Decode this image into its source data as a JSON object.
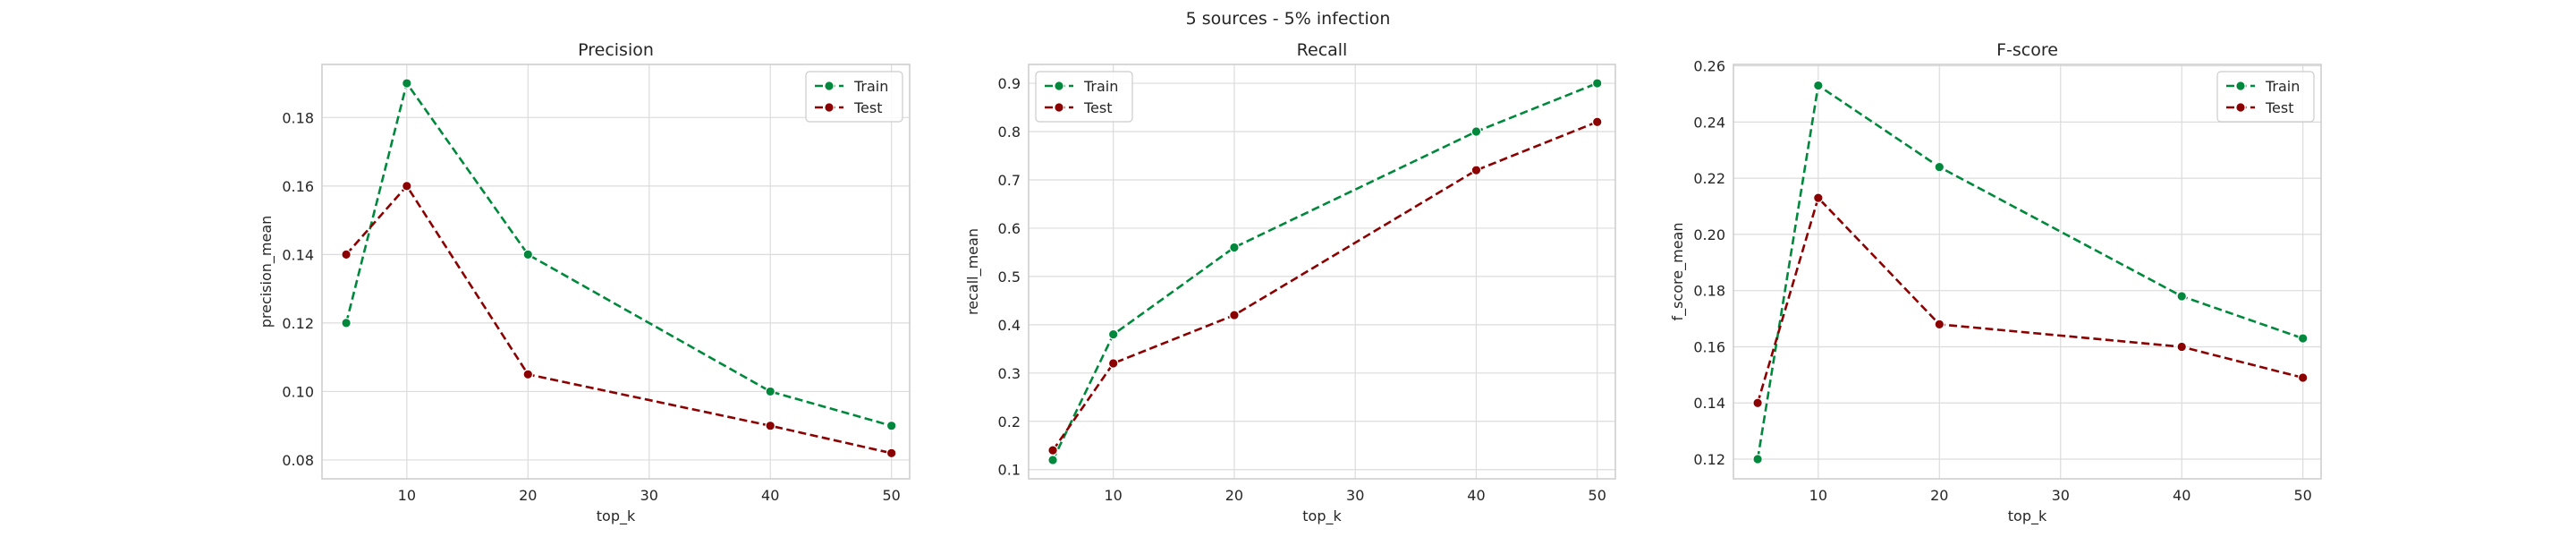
{
  "figure_title": "5 sources - 5% infection",
  "colors": {
    "train": "#00893c",
    "test": "#8b0000",
    "grid": "#dcdcdc",
    "frame": "#cccccc"
  },
  "chart_data": [
    {
      "type": "line",
      "title": "Precision",
      "xlabel": "top_k",
      "ylabel": "precision_mean",
      "x": [
        5,
        10,
        20,
        40,
        50
      ],
      "xlim": [
        3,
        51.5
      ],
      "ylim": [
        0.0745,
        0.1955
      ],
      "xticks": [
        10,
        20,
        30,
        40,
        50
      ],
      "yticks": [
        0.08,
        0.1,
        0.12,
        0.14,
        0.16,
        0.18
      ],
      "ytick_labels": [
        "0.08",
        "0.10",
        "0.12",
        "0.14",
        "0.16",
        "0.18"
      ],
      "grid": true,
      "legend_position": "upper right",
      "series": [
        {
          "name": "Train",
          "values": [
            0.12,
            0.19,
            0.14,
            0.1,
            0.09
          ]
        },
        {
          "name": "Test",
          "values": [
            0.14,
            0.16,
            0.105,
            0.09,
            0.082
          ]
        }
      ]
    },
    {
      "type": "line",
      "title": "Recall",
      "xlabel": "top_k",
      "ylabel": "recall_mean",
      "x": [
        5,
        10,
        20,
        40,
        50
      ],
      "xlim": [
        3,
        51.5
      ],
      "ylim": [
        0.081,
        0.939
      ],
      "xticks": [
        10,
        20,
        30,
        40,
        50
      ],
      "yticks": [
        0.1,
        0.2,
        0.3,
        0.4,
        0.5,
        0.6,
        0.7,
        0.8,
        0.9
      ],
      "ytick_labels": [
        "0.1",
        "0.2",
        "0.3",
        "0.4",
        "0.5",
        "0.6",
        "0.7",
        "0.8",
        "0.9"
      ],
      "grid": true,
      "legend_position": "upper left",
      "series": [
        {
          "name": "Train",
          "values": [
            0.12,
            0.38,
            0.56,
            0.8,
            0.9
          ]
        },
        {
          "name": "Test",
          "values": [
            0.14,
            0.32,
            0.42,
            0.72,
            0.82
          ]
        }
      ]
    },
    {
      "type": "line",
      "title": "F-score",
      "xlabel": "top_k",
      "ylabel": "f_score_mean",
      "x": [
        5,
        10,
        20,
        40,
        50
      ],
      "xlim": [
        3,
        51.5
      ],
      "ylim": [
        0.113,
        0.2605
      ],
      "xticks": [
        10,
        20,
        30,
        40,
        50
      ],
      "yticks": [
        0.12,
        0.14,
        0.16,
        0.18,
        0.2,
        0.22,
        0.24,
        0.26
      ],
      "ytick_labels": [
        "0.12",
        "0.14",
        "0.16",
        "0.18",
        "0.20",
        "0.22",
        "0.24",
        "0.26"
      ],
      "grid": true,
      "legend_position": "upper right",
      "series": [
        {
          "name": "Train",
          "values": [
            0.12,
            0.253,
            0.224,
            0.178,
            0.163
          ]
        },
        {
          "name": "Test",
          "values": [
            0.14,
            0.213,
            0.168,
            0.16,
            0.149
          ]
        }
      ]
    }
  ]
}
